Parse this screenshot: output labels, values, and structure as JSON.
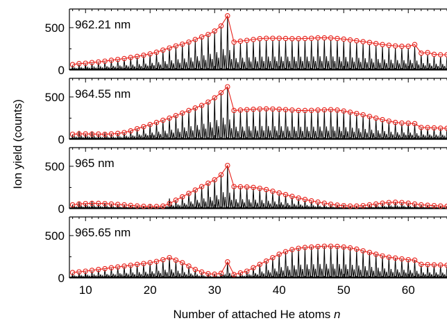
{
  "chart_data": {
    "type": "line",
    "xlabel": "Number of attached He atoms",
    "xlabel_var": "n",
    "ylabel": "Ion yield (counts)",
    "xlim": [
      7.5,
      66
    ],
    "xticks": [
      10,
      20,
      30,
      40,
      50,
      60
    ],
    "ylim": [
      0,
      720
    ],
    "yticks": [
      0,
      500
    ],
    "grid": false,
    "colors": {
      "envelope": "#e8231c",
      "spectrum": "#000000",
      "axes": "#000000"
    },
    "panels": [
      {
        "label": "962.21 nm",
        "envelope": {
          "n": [
            8,
            9,
            10,
            11,
            12,
            13,
            14,
            15,
            16,
            17,
            18,
            19,
            20,
            21,
            22,
            23,
            24,
            25,
            26,
            27,
            28,
            29,
            30,
            31,
            32,
            33,
            34,
            35,
            36,
            37,
            38,
            39,
            40,
            41,
            42,
            43,
            44,
            45,
            46,
            47,
            48,
            49,
            50,
            51,
            52,
            53,
            54,
            55,
            56,
            57,
            58,
            59,
            60,
            61,
            62,
            63,
            64,
            65,
            66
          ],
          "values": [
            65,
            75,
            80,
            88,
            95,
            105,
            115,
            125,
            135,
            148,
            160,
            175,
            190,
            210,
            235,
            260,
            285,
            305,
            330,
            360,
            390,
            420,
            460,
            520,
            640,
            330,
            340,
            350,
            360,
            370,
            375,
            375,
            375,
            372,
            370,
            370,
            372,
            375,
            380,
            380,
            378,
            372,
            365,
            355,
            345,
            335,
            325,
            312,
            300,
            292,
            285,
            280,
            280,
            300,
            200,
            205,
            185,
            180,
            180
          ]
        },
        "spectrum": {
          "n": [
            8,
            9,
            10,
            11,
            12,
            13,
            14,
            15,
            16,
            17,
            18,
            19,
            20,
            21,
            22,
            23,
            24,
            25,
            26,
            27,
            28,
            29,
            30,
            31,
            32,
            33,
            34,
            35,
            36,
            37,
            38,
            39,
            40,
            41,
            42,
            43,
            44,
            45,
            46,
            47,
            48,
            49,
            50,
            51,
            52,
            53,
            54,
            55,
            56,
            57,
            58,
            59,
            60,
            61,
            62,
            63,
            64,
            65,
            66
          ],
          "values": [
            55,
            65,
            70,
            78,
            85,
            95,
            105,
            115,
            125,
            138,
            150,
            165,
            180,
            200,
            225,
            250,
            275,
            295,
            320,
            350,
            380,
            410,
            450,
            510,
            630,
            310,
            320,
            330,
            340,
            350,
            355,
            355,
            355,
            352,
            350,
            350,
            352,
            355,
            360,
            360,
            358,
            352,
            345,
            335,
            325,
            315,
            305,
            292,
            280,
            272,
            265,
            260,
            260,
            280,
            180,
            185,
            165,
            160,
            160
          ]
        }
      },
      {
        "label": "964.55 nm",
        "envelope": {
          "n": [
            8,
            9,
            10,
            11,
            12,
            13,
            14,
            15,
            16,
            17,
            18,
            19,
            20,
            21,
            22,
            23,
            24,
            25,
            26,
            27,
            28,
            29,
            30,
            31,
            32,
            33,
            34,
            35,
            36,
            37,
            38,
            39,
            40,
            41,
            42,
            43,
            44,
            45,
            46,
            47,
            48,
            49,
            50,
            51,
            52,
            53,
            54,
            55,
            56,
            57,
            58,
            59,
            60,
            61,
            62,
            63,
            64,
            65,
            66
          ],
          "values": [
            60,
            65,
            65,
            62,
            62,
            60,
            65,
            70,
            80,
            100,
            125,
            150,
            175,
            200,
            225,
            250,
            280,
            310,
            340,
            370,
            400,
            440,
            490,
            550,
            620,
            340,
            345,
            350,
            355,
            358,
            360,
            358,
            355,
            350,
            345,
            340,
            340,
            342,
            345,
            348,
            350,
            345,
            335,
            320,
            305,
            290,
            270,
            250,
            232,
            215,
            200,
            192,
            190,
            185,
            140,
            138,
            135,
            132,
            130
          ]
        },
        "spectrum": {
          "n": [
            8,
            9,
            10,
            11,
            12,
            13,
            14,
            15,
            16,
            17,
            18,
            19,
            20,
            21,
            22,
            23,
            24,
            25,
            26,
            27,
            28,
            29,
            30,
            31,
            32,
            33,
            34,
            35,
            36,
            37,
            38,
            39,
            40,
            41,
            42,
            43,
            44,
            45,
            46,
            47,
            48,
            49,
            50,
            51,
            52,
            53,
            54,
            55,
            56,
            57,
            58,
            59,
            60,
            61,
            62,
            63,
            64,
            65,
            66
          ],
          "values": [
            55,
            100,
            60,
            95,
            55,
            80,
            60,
            65,
            75,
            95,
            120,
            145,
            170,
            195,
            220,
            245,
            275,
            305,
            335,
            365,
            395,
            435,
            485,
            545,
            615,
            330,
            335,
            340,
            345,
            348,
            350,
            348,
            345,
            340,
            335,
            330,
            330,
            332,
            335,
            338,
            340,
            335,
            325,
            310,
            295,
            280,
            260,
            240,
            222,
            205,
            190,
            182,
            180,
            175,
            130,
            128,
            125,
            122,
            120
          ]
        }
      },
      {
        "label": "965 nm",
        "envelope": {
          "n": [
            8,
            9,
            10,
            11,
            12,
            13,
            14,
            15,
            16,
            17,
            18,
            19,
            20,
            21,
            22,
            23,
            24,
            25,
            26,
            27,
            28,
            29,
            30,
            31,
            32,
            33,
            34,
            35,
            36,
            37,
            38,
            39,
            40,
            41,
            42,
            43,
            44,
            45,
            46,
            47,
            48,
            49,
            50,
            51,
            52,
            53,
            54,
            55,
            56,
            57,
            58,
            59,
            60,
            61,
            62,
            63,
            64,
            65,
            66
          ],
          "values": [
            45,
            55,
            60,
            62,
            62,
            60,
            55,
            50,
            45,
            38,
            32,
            28,
            25,
            25,
            30,
            60,
            100,
            140,
            180,
            220,
            260,
            300,
            340,
            400,
            510,
            260,
            258,
            255,
            250,
            240,
            225,
            205,
            185,
            165,
            145,
            125,
            108,
            92,
            78,
            65,
            52,
            42,
            35,
            30,
            30,
            35,
            45,
            55,
            65,
            72,
            75,
            72,
            65,
            55,
            45,
            40,
            35,
            30,
            28
          ]
        },
        "spectrum": {
          "n": [
            8,
            9,
            10,
            11,
            12,
            13,
            14,
            15,
            16,
            17,
            18,
            19,
            20,
            21,
            22,
            23,
            24,
            25,
            26,
            27,
            28,
            29,
            30,
            31,
            32,
            33,
            34,
            35,
            36,
            37,
            38,
            39,
            40,
            41,
            42,
            43,
            44,
            45,
            46,
            47,
            48,
            49,
            50,
            51,
            52,
            53,
            54,
            55,
            56,
            57,
            58,
            59,
            60,
            61,
            62,
            63,
            64,
            65,
            66
          ],
          "values": [
            40,
            80,
            55,
            85,
            55,
            70,
            50,
            45,
            40,
            35,
            30,
            25,
            22,
            22,
            28,
            120,
            95,
            135,
            175,
            215,
            255,
            295,
            335,
            395,
            505,
            250,
            248,
            245,
            240,
            230,
            215,
            195,
            175,
            155,
            135,
            115,
            98,
            82,
            68,
            55,
            45,
            38,
            30,
            26,
            26,
            30,
            40,
            50,
            60,
            68,
            70,
            68,
            60,
            50,
            40,
            35,
            30,
            26,
            24
          ]
        }
      },
      {
        "label": "965.65 nm",
        "envelope": {
          "n": [
            8,
            9,
            10,
            11,
            12,
            13,
            14,
            15,
            16,
            17,
            18,
            19,
            20,
            21,
            22,
            23,
            24,
            25,
            26,
            27,
            28,
            29,
            30,
            31,
            32,
            33,
            34,
            35,
            36,
            37,
            38,
            39,
            40,
            41,
            42,
            43,
            44,
            45,
            46,
            47,
            48,
            49,
            50,
            51,
            52,
            53,
            54,
            55,
            56,
            57,
            58,
            59,
            60,
            61,
            62,
            63,
            64,
            65,
            66
          ],
          "values": [
            65,
            72,
            80,
            90,
            100,
            110,
            120,
            130,
            140,
            150,
            160,
            170,
            180,
            195,
            215,
            240,
            210,
            180,
            140,
            100,
            70,
            50,
            45,
            55,
            190,
            40,
            60,
            80,
            120,
            160,
            200,
            240,
            280,
            310,
            335,
            350,
            360,
            365,
            370,
            375,
            375,
            372,
            365,
            355,
            340,
            320,
            300,
            280,
            260,
            245,
            235,
            225,
            215,
            210,
            160,
            158,
            155,
            152,
            150
          ]
        },
        "spectrum": {
          "n": [
            8,
            9,
            10,
            11,
            12,
            13,
            14,
            15,
            16,
            17,
            18,
            19,
            20,
            21,
            22,
            23,
            24,
            25,
            26,
            27,
            28,
            29,
            30,
            31,
            32,
            33,
            34,
            35,
            36,
            37,
            38,
            39,
            40,
            41,
            42,
            43,
            44,
            45,
            46,
            47,
            48,
            49,
            50,
            51,
            52,
            53,
            54,
            55,
            56,
            57,
            58,
            59,
            60,
            61,
            62,
            63,
            64,
            65,
            66
          ],
          "values": [
            55,
            62,
            70,
            80,
            90,
            100,
            110,
            120,
            130,
            140,
            150,
            160,
            170,
            185,
            205,
            240,
            200,
            170,
            130,
            92,
            62,
            45,
            40,
            50,
            180,
            35,
            55,
            75,
            115,
            155,
            195,
            235,
            275,
            305,
            330,
            345,
            355,
            360,
            365,
            370,
            370,
            367,
            360,
            350,
            335,
            315,
            295,
            275,
            255,
            240,
            230,
            220,
            210,
            205,
            150,
            148,
            145,
            142,
            140
          ]
        }
      }
    ]
  }
}
